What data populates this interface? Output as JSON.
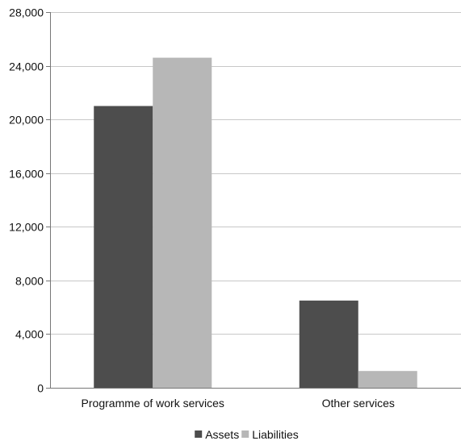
{
  "chart_data": {
    "type": "bar",
    "title": "",
    "xlabel": "",
    "ylabel": "",
    "categories": [
      "Programme of work services",
      "Other services"
    ],
    "series": [
      {
        "name": "Assets",
        "values": [
          21000,
          6500
        ],
        "color": "#4d4d4d"
      },
      {
        "name": "Liabilities",
        "values": [
          24600,
          1250
        ],
        "color": "#b7b7b7"
      }
    ],
    "ylim": [
      0,
      28000
    ],
    "yticks": [
      0,
      4000,
      8000,
      12000,
      16000,
      20000,
      24000,
      28000
    ],
    "ytick_labels": [
      "0",
      "4,000",
      "8,000",
      "12,000",
      "16,000",
      "20,000",
      "24,000",
      "28,000"
    ],
    "grid": true,
    "legend_position": "bottom-center"
  }
}
